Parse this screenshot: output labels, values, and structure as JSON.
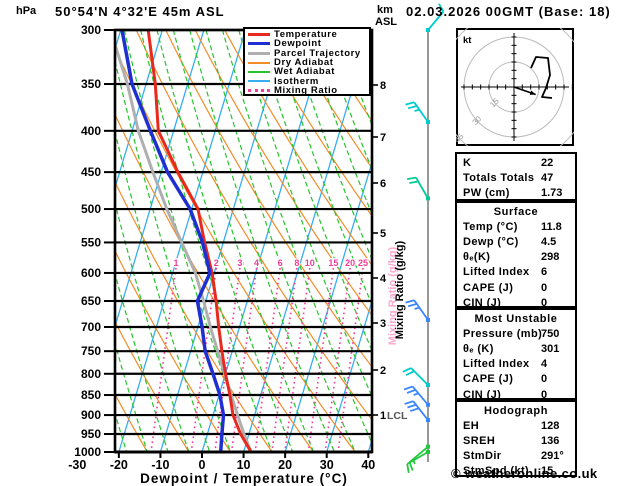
{
  "header": {
    "station": "50°54'N 4°32'E 45m ASL",
    "datetime": "02.03.2026 00GMT (Base: 18)"
  },
  "footer": {
    "credit": "© weatheronline.co.uk"
  },
  "axes": {
    "pressure_label": "hPa",
    "km_label_line1": "km",
    "km_label_line2": "ASL",
    "x_label": "Dewpoint / Temperature (°C)",
    "mixing_label": "Mixing Ratio (g/kg)",
    "pressure_ticks": [
      300,
      350,
      400,
      450,
      500,
      550,
      600,
      650,
      700,
      750,
      800,
      850,
      900,
      950,
      1000
    ],
    "temp_ticks": [
      -30,
      -20,
      -10,
      0,
      10,
      20,
      30,
      40
    ],
    "km_ticks": [
      8,
      7,
      6,
      5,
      4,
      3,
      2,
      1
    ],
    "lcl_label": "LCL"
  },
  "legend": {
    "items": [
      {
        "label": "Temperature",
        "color": "#E8291D",
        "style": "thick"
      },
      {
        "label": "Dewpoint",
        "color": "#1F2FD1",
        "style": "thick"
      },
      {
        "label": "Parcel Trajectory",
        "color": "#AFAFAF",
        "style": "thick"
      },
      {
        "label": "Dry Adiabat",
        "color": "#F28C28",
        "style": "thin"
      },
      {
        "label": "Wet Adiabat",
        "color": "#27C42C",
        "style": "thin"
      },
      {
        "label": "Isotherm",
        "color": "#35AEF2",
        "style": "thin"
      },
      {
        "label": "Mixing Ratio",
        "color": "#F23C96",
        "style": "dotted"
      }
    ]
  },
  "tables": {
    "indices": {
      "rows": [
        [
          "K",
          "22"
        ],
        [
          "Totals Totals",
          "47"
        ],
        [
          "PW (cm)",
          "1.73"
        ]
      ]
    },
    "surface": {
      "title": "Surface",
      "rows": [
        [
          "Temp (°C)",
          "11.8"
        ],
        [
          "Dewp (°C)",
          "4.5"
        ],
        [
          "θₑ(K)",
          "298"
        ],
        [
          "Lifted Index",
          "6"
        ],
        [
          "CAPE (J)",
          "0"
        ],
        [
          "CIN (J)",
          "0"
        ]
      ]
    },
    "most_unstable": {
      "title": "Most Unstable",
      "rows": [
        [
          "Pressure (mb)",
          "750"
        ],
        [
          "θₑ (K)",
          "301"
        ],
        [
          "Lifted Index",
          "4"
        ],
        [
          "CAPE (J)",
          "0"
        ],
        [
          "CIN (J)",
          "0"
        ]
      ]
    },
    "hodograph": {
      "title": "Hodograph",
      "rows": [
        [
          "EH",
          "128"
        ],
        [
          "SREH",
          "136"
        ],
        [
          "StmDir",
          "291°"
        ],
        [
          "StmSpd (kt)",
          "15"
        ]
      ]
    }
  },
  "chart_data": {
    "type": "line",
    "variant": "skew-t-log-p",
    "title": "50°54'N 4°32'E 45m ASL",
    "x_axis": {
      "label": "Dewpoint / Temperature (°C)",
      "ticks": [
        -30,
        -20,
        -10,
        0,
        10,
        20,
        30,
        40
      ],
      "units": "°C"
    },
    "y_axis": {
      "label": "hPa",
      "scale": "log",
      "range": [
        300,
        1000
      ],
      "ticks": [
        300,
        350,
        400,
        450,
        500,
        550,
        600,
        650,
        700,
        750,
        800,
        850,
        900,
        950,
        1000
      ]
    },
    "km_axis": {
      "label": "km ASL",
      "ticks": [
        1,
        2,
        3,
        4,
        5,
        6,
        7,
        8
      ],
      "lcl_km": 1
    },
    "mixing_ratio_lines_gkg": [
      1,
      2,
      3,
      4,
      6,
      8,
      10,
      15,
      20,
      25
    ],
    "series": [
      {
        "name": "Temperature",
        "color": "#E8291D",
        "points": [
          [
            1000,
            11.8
          ],
          [
            950,
            8
          ],
          [
            900,
            4.8
          ],
          [
            850,
            2.6
          ],
          [
            800,
            0
          ],
          [
            750,
            -2.5
          ],
          [
            700,
            -5
          ],
          [
            650,
            -7.5
          ],
          [
            600,
            -10.5
          ],
          [
            550,
            -14.5
          ],
          [
            500,
            -18.5
          ],
          [
            450,
            -26
          ],
          [
            400,
            -33.7
          ],
          [
            350,
            -37.8
          ],
          [
            300,
            -43.4
          ]
        ]
      },
      {
        "name": "Dewpoint",
        "color": "#1F2FD1",
        "points": [
          [
            1000,
            4.5
          ],
          [
            950,
            3.5
          ],
          [
            900,
            2.5
          ],
          [
            850,
            0.2
          ],
          [
            800,
            -3
          ],
          [
            750,
            -6.5
          ],
          [
            700,
            -9
          ],
          [
            650,
            -12
          ],
          [
            600,
            -11
          ],
          [
            550,
            -15
          ],
          [
            500,
            -20.4
          ],
          [
            450,
            -28.5
          ],
          [
            400,
            -35.6
          ],
          [
            350,
            -43.4
          ],
          [
            300,
            -49.7
          ]
        ]
      },
      {
        "name": "Parcel Trajectory",
        "color": "#AFAFAF",
        "points": [
          [
            1000,
            11.8
          ],
          [
            950,
            8.8
          ],
          [
            900,
            5.9
          ],
          [
            850,
            2.9
          ],
          [
            800,
            -0.2
          ],
          [
            750,
            -3.5
          ],
          [
            700,
            -7
          ],
          [
            650,
            -10.5
          ],
          [
            600,
            -14.5
          ],
          [
            550,
            -20
          ],
          [
            500,
            -26
          ],
          [
            450,
            -32
          ],
          [
            400,
            -38.5
          ],
          [
            350,
            -44.5
          ],
          [
            300,
            -52.5
          ]
        ]
      }
    ],
    "wind_barbs": [
      {
        "p": 300,
        "speed_kt": 10,
        "color": "#00CCCC",
        "angle_deg": 40
      },
      {
        "p": 390,
        "speed_kt": 25,
        "color": "#00CCCC",
        "angle_deg": -35
      },
      {
        "p": 485,
        "speed_kt": 20,
        "color": "#00CC99",
        "angle_deg": -30
      },
      {
        "p": 686,
        "speed_kt": 25,
        "color": "#3A86FF",
        "angle_deg": -35
      },
      {
        "p": 826,
        "speed_kt": 20,
        "color": "#00CCCC",
        "angle_deg": -45
      },
      {
        "p": 874,
        "speed_kt": 25,
        "color": "#3A86FF",
        "angle_deg": -40
      },
      {
        "p": 913,
        "speed_kt": 30,
        "color": "#3A86FF",
        "angle_deg": -38
      },
      {
        "p": 985,
        "speed_kt": 15,
        "color": "#22C93D",
        "angle_deg": -130
      },
      {
        "p": 1000,
        "speed_kt": 10,
        "color": "#22C93D",
        "angle_deg": -120
      }
    ],
    "hodograph": {
      "unit_label": "kt",
      "rings_kt": [
        15,
        30,
        45
      ],
      "ring_step_tick_kt": 5,
      "trace_kt": [
        [
          10.2,
          11.4
        ],
        [
          13.2,
          18
        ],
        [
          20.4,
          17.4
        ],
        [
          21.6,
          7.2
        ],
        [
          19.2,
          -0.6
        ],
        [
          16.8,
          -6
        ],
        [
          22.8,
          -6.6
        ]
      ],
      "storm_motion_kt": [
        13,
        -4.5
      ],
      "storm_dir_deg": 291,
      "storm_speed_kt": 15
    }
  }
}
